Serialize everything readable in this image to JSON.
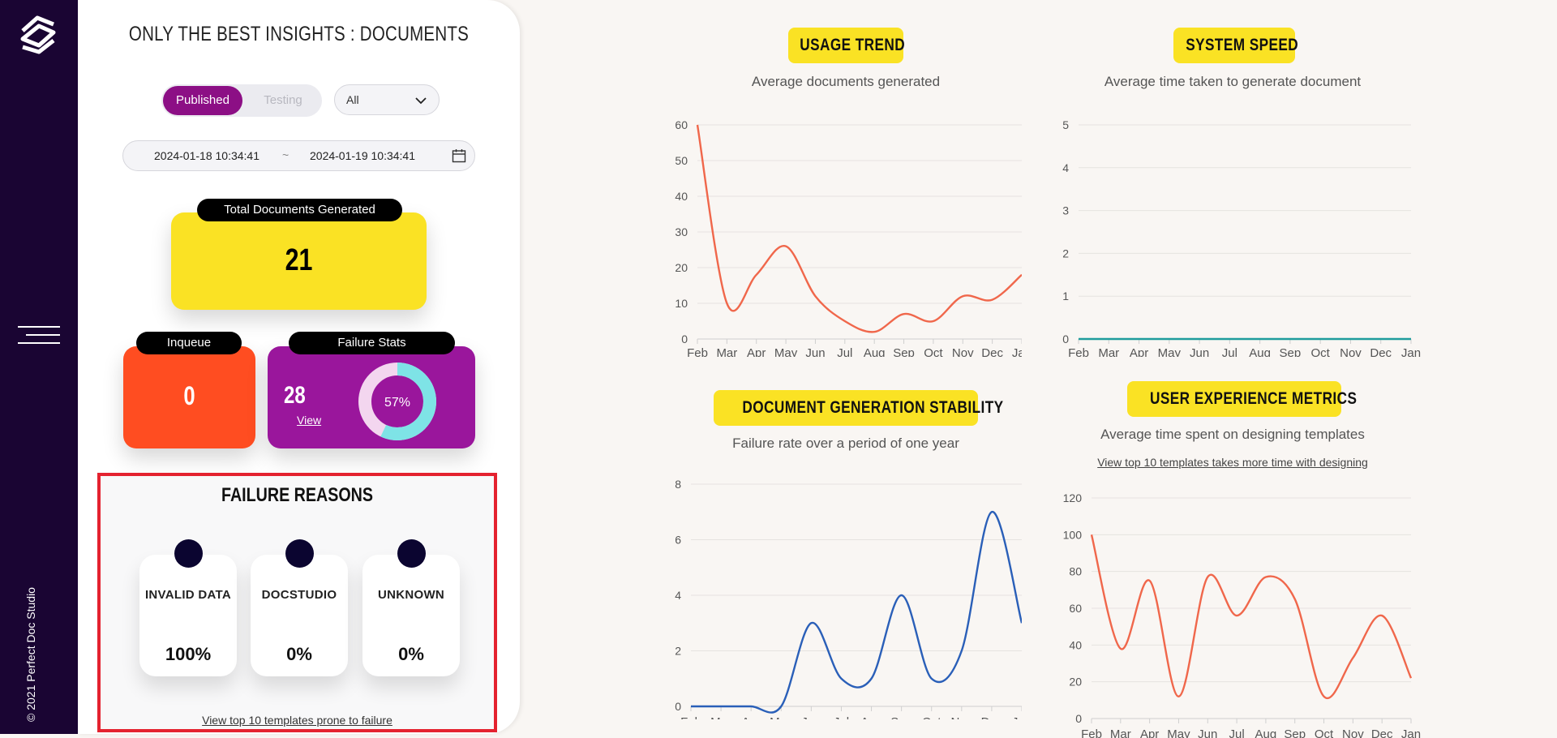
{
  "sidebar": {
    "copyright": "© 2021 Perfect Doc Studio"
  },
  "panel": {
    "title": "ONLY THE BEST INSIGHTS : DOCUMENTS",
    "toggle": {
      "published": "Published",
      "testing": "Testing"
    },
    "filter": {
      "value": "All"
    },
    "daterange": {
      "start": "2024-01-18 10:34:41",
      "separator": "~",
      "end": "2024-01-19 10:34:41"
    },
    "total": {
      "label": "Total Documents Generated",
      "value": "21"
    },
    "inqueue": {
      "label": "Inqueue",
      "value": "0"
    },
    "failure": {
      "label": "Failure Stats",
      "value": "28",
      "view": "View",
      "percent_label": "57%",
      "percent": 57
    },
    "reasons": {
      "title": "FAILURE REASONS",
      "items": [
        {
          "label": "INVALID DATA",
          "value": "100%"
        },
        {
          "label": "DOCSTUDIO",
          "value": "0%"
        },
        {
          "label": "UNKNOWN",
          "value": "0%"
        }
      ],
      "link": "View top 10 templates prone to failure"
    }
  },
  "colors": {
    "sidebar": "#1a0533",
    "accent": "#8c0f85",
    "yellow": "#fae224",
    "orange": "#ff4d21",
    "purple": "#9a169c",
    "cyan": "#7ee3e6",
    "line_orange": "#f0674b",
    "line_blue": "#2a5fb8",
    "line_teal": "#1f9c9c"
  },
  "chart_data": [
    {
      "type": "line",
      "title": "USAGE TREND",
      "subtitle": "Average documents generated",
      "categories": [
        "Feb",
        "Mar",
        "Apr",
        "May",
        "Jun",
        "Jul",
        "Aug",
        "Sep",
        "Oct",
        "Nov",
        "Dec",
        "Jan"
      ],
      "yticks": [
        0,
        10,
        20,
        30,
        40,
        50,
        60
      ],
      "ylim": [
        0,
        60
      ],
      "series": [
        {
          "values": [
            60,
            10,
            18,
            26,
            12,
            5,
            2,
            7,
            5,
            12,
            11,
            18
          ]
        }
      ]
    },
    {
      "type": "line",
      "title": "SYSTEM SPEED",
      "subtitle": "Average time taken to generate document",
      "categories": [
        "Feb",
        "Mar",
        "Apr",
        "May",
        "Jun",
        "Jul",
        "Aug",
        "Sep",
        "Oct",
        "Nov",
        "Dec",
        "Jan"
      ],
      "yticks": [
        0,
        1,
        2,
        3,
        4,
        5
      ],
      "ylim": [
        0,
        5
      ],
      "series": [
        {
          "values": [
            0,
            0,
            0,
            0,
            0,
            0,
            0,
            0,
            0,
            0,
            0,
            0
          ]
        }
      ]
    },
    {
      "type": "line",
      "title": "DOCUMENT GENERATION STABILITY",
      "subtitle": "Failure rate over a period of one year",
      "categories": [
        "Feb",
        "Mar",
        "Apr",
        "May",
        "Jun",
        "Jul",
        "Aug",
        "Sep",
        "Oct",
        "Nov",
        "Dec",
        "Jan"
      ],
      "yticks": [
        0,
        2,
        4,
        6,
        8
      ],
      "ylim": [
        0,
        8
      ],
      "series": [
        {
          "values": [
            0,
            0,
            0,
            0,
            3,
            1,
            1,
            4,
            1,
            2,
            7,
            3
          ]
        }
      ]
    },
    {
      "type": "line",
      "title": "USER EXPERIENCE METRICS",
      "subtitle": "Average time spent on designing templates",
      "link": "View top 10 templates takes more time with designing",
      "categories": [
        "Feb",
        "Mar",
        "Apr",
        "May",
        "Jun",
        "Jul",
        "Aug",
        "Sep",
        "Oct",
        "Nov",
        "Dec",
        "Jan"
      ],
      "yticks": [
        0,
        20,
        40,
        60,
        80,
        100,
        120
      ],
      "ylim": [
        0,
        120
      ],
      "series": [
        {
          "values": [
            100,
            38,
            75,
            12,
            77,
            56,
            77,
            65,
            12,
            33,
            56,
            22
          ]
        }
      ]
    }
  ]
}
